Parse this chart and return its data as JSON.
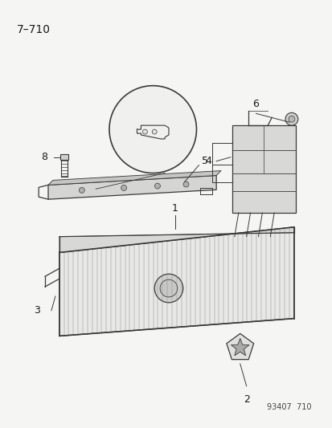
{
  "title": "7–710",
  "footer": "93407  710",
  "bg_color": "#f5f5f3",
  "text_color": "#1a1a1a",
  "line_color": "#3a3a3a",
  "fig_width": 4.14,
  "fig_height": 5.33,
  "dpi": 100
}
